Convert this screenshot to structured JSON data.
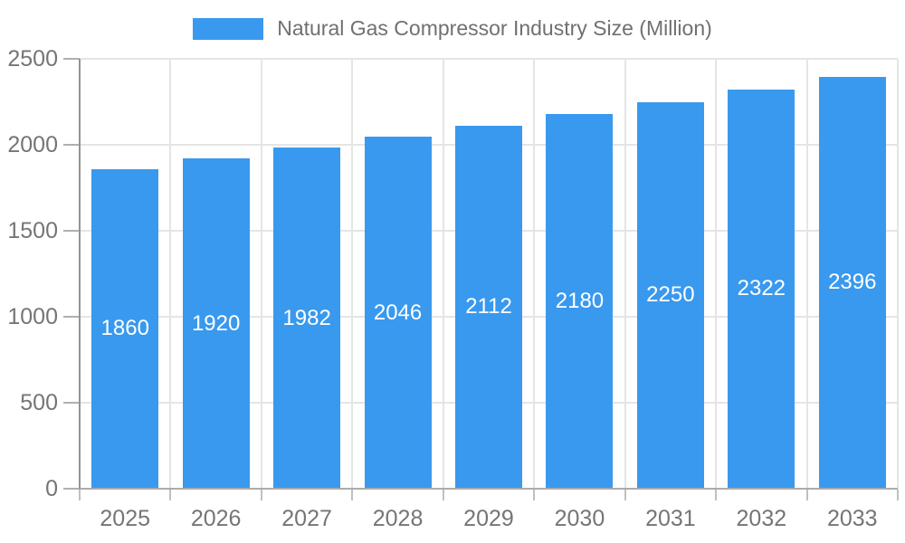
{
  "chart_data": {
    "type": "bar",
    "title": "Natural Gas Compressor Industry Size (Million)",
    "categories": [
      "2025",
      "2026",
      "2027",
      "2028",
      "2029",
      "2030",
      "2031",
      "2032",
      "2033"
    ],
    "values": [
      1860,
      1920,
      1982,
      2046,
      2112,
      2180,
      2250,
      2322,
      2396
    ],
    "xlabel": "",
    "ylabel": "",
    "ylim": [
      0,
      2500
    ],
    "yticks": [
      0,
      500,
      1000,
      1500,
      2000,
      2500
    ],
    "grid": true,
    "legend_position": "top",
    "value_labels_inside_bars": true,
    "colors": {
      "bar": "#3999EE",
      "value_label": "#FFFFFF",
      "grid": "#E5E5E5",
      "axis": "#999999",
      "text": "#757575"
    }
  }
}
